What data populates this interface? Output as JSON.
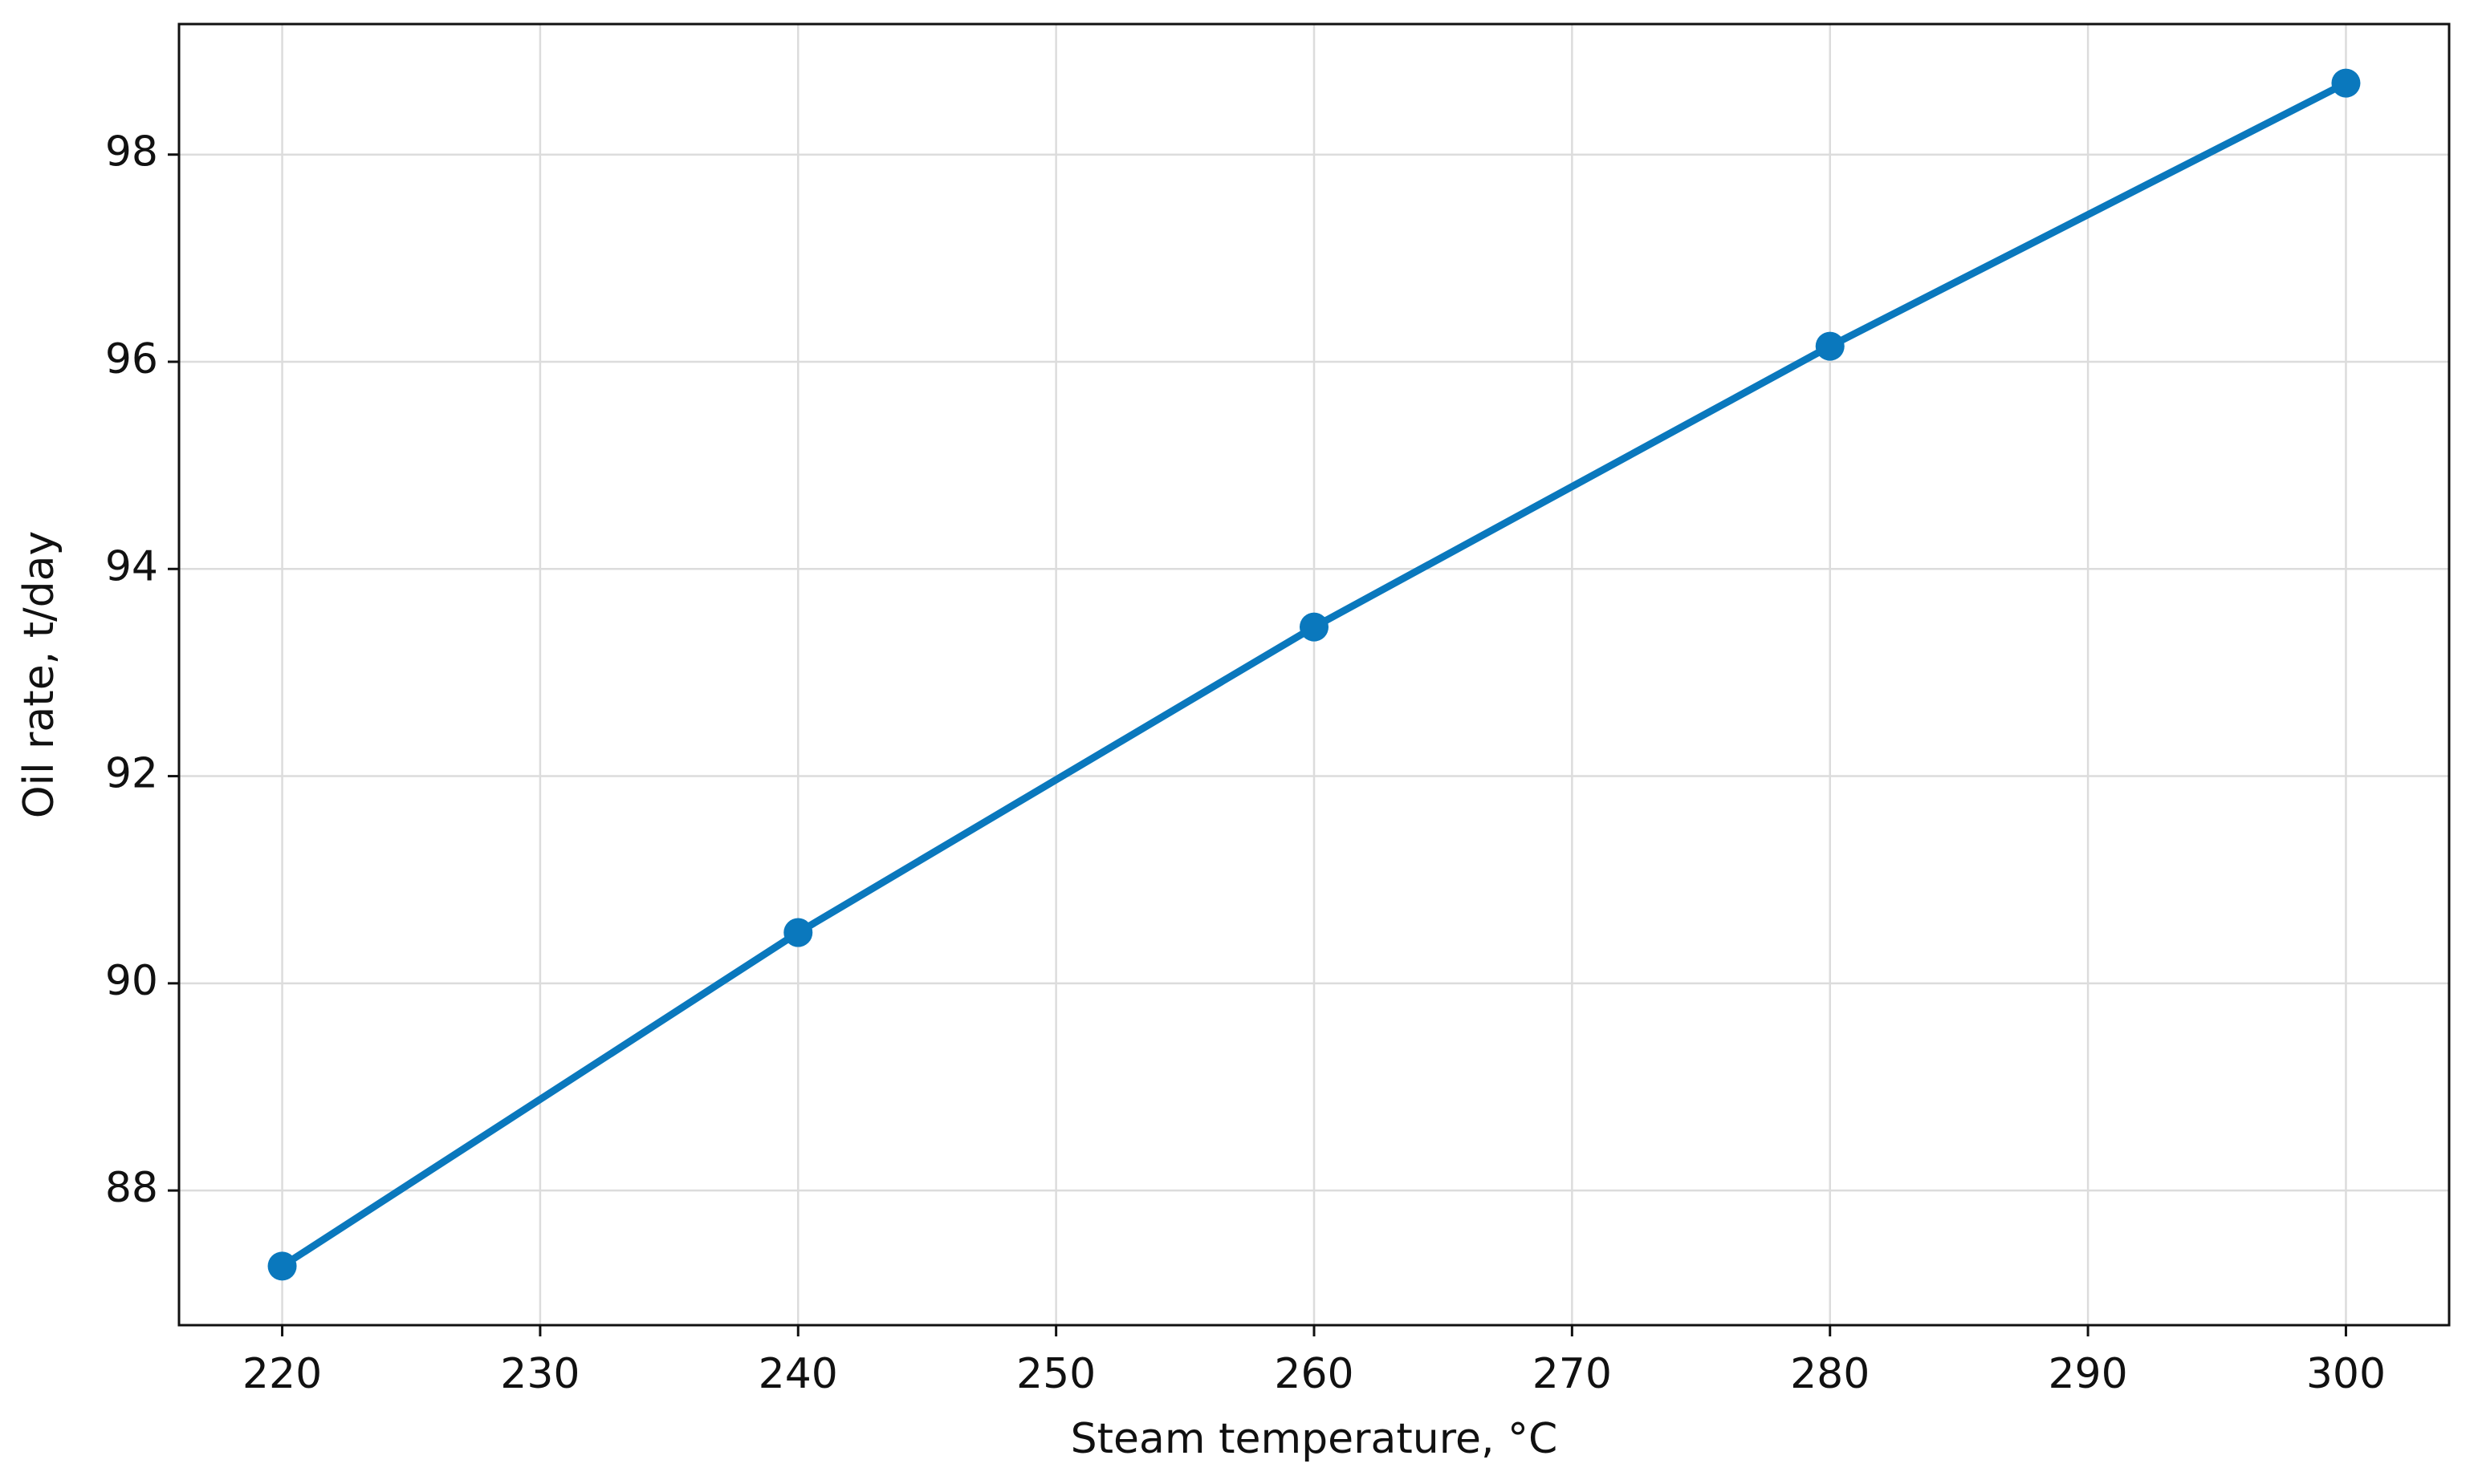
{
  "chart_data": {
    "type": "line",
    "x_label": "Steam temperature, °C",
    "y_label": "Oil rate, t/day",
    "x": [
      220,
      240,
      260,
      280,
      300
    ],
    "series": [
      {
        "color": "#0a78bd",
        "values": [
          87.27,
          90.49,
          93.44,
          96.15,
          98.69
        ]
      }
    ],
    "xlim": [
      216,
      304
    ],
    "ylim": [
      86.7,
      99.26
    ],
    "xticks": [
      220,
      230,
      240,
      250,
      260,
      270,
      280,
      290,
      300
    ],
    "yticks": [
      88,
      90,
      92,
      94,
      96,
      98
    ],
    "grid": true
  }
}
